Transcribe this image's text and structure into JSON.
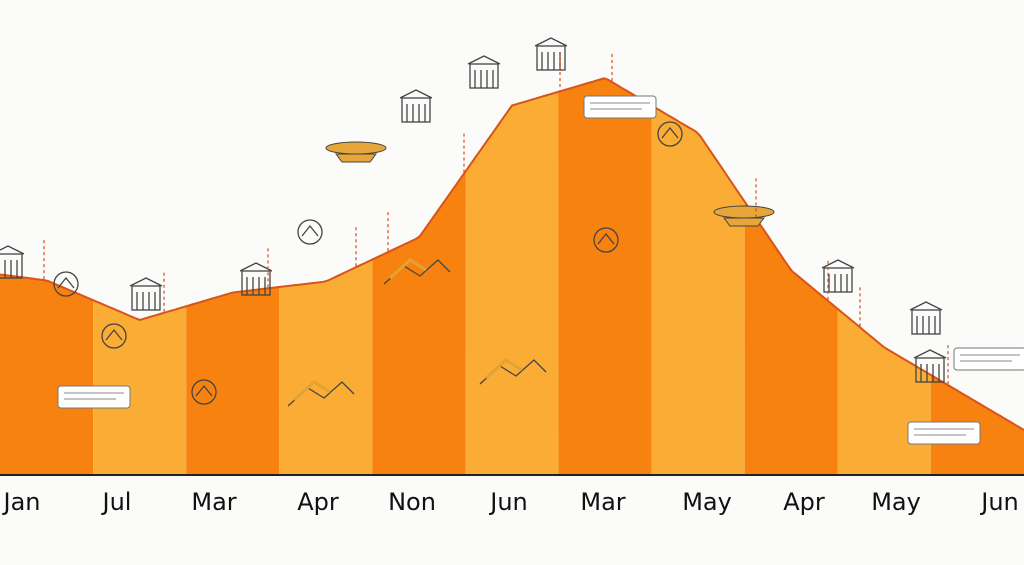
{
  "chart_data": {
    "type": "area",
    "title": "",
    "xlabel": "",
    "ylabel": "",
    "categories": [
      "Jan",
      "Jul",
      "Mar",
      "Apr",
      "Non",
      "Jun",
      "Mar",
      "May",
      "Apr",
      "May",
      "Jun"
    ],
    "values": [
      176,
      140,
      165,
      175,
      215,
      335,
      360,
      310,
      185,
      115,
      65
    ],
    "ylim": [
      0,
      400
    ],
    "grid": false,
    "legend": "none",
    "colors": {
      "band_dark": "#f7820f",
      "band_light": "#fbac35",
      "outline": "#d8541a",
      "connector": "#d94a1e",
      "axis": "#222222"
    },
    "annotation_icons": [
      "columns-building-icon",
      "globe-icon",
      "castle-icon",
      "open-book-icon",
      "document-card-icon",
      "shovel-icon",
      "tools-icon",
      "ship-icon",
      "worker-icon",
      "map-line-icon",
      "scale-icon",
      "monument-icon",
      "temple-icon",
      "crate-icon",
      "factory-icon",
      "trowel-icon",
      "gold-bar-icon",
      "microchip-icon",
      "gateway-icon",
      "dome-icon",
      "bell-icon"
    ]
  }
}
